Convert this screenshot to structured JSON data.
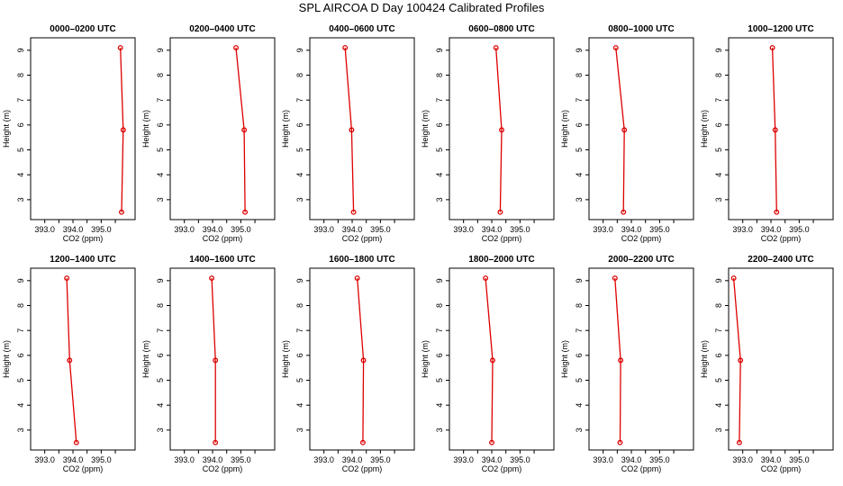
{
  "title": "SPL AIRCOA D  Day 100424  Calibrated Profiles",
  "colors": {
    "series": "#dd0000",
    "axis": "#000000"
  },
  "chart_data": [
    {
      "type": "line",
      "title": "0000–0200 UTC",
      "xlabel": "CO2 (ppm)",
      "ylabel": "Height (m)",
      "xlim": [
        392.5,
        396.2
      ],
      "ylim": [
        2.2,
        9.5
      ],
      "xticks": [
        "393.0",
        "394.0",
        "395.0"
      ],
      "yticks": [
        "3",
        "4",
        "5",
        "6",
        "7",
        "8",
        "9"
      ],
      "x": [
        395.72,
        395.78,
        395.68
      ],
      "y": [
        2.5,
        5.8,
        9.1
      ]
    },
    {
      "type": "line",
      "title": "0200–0400 UTC",
      "xlabel": "CO2 (ppm)",
      "ylabel": "Height (m)",
      "xlim": [
        392.5,
        396.2
      ],
      "ylim": [
        2.2,
        9.5
      ],
      "xticks": [
        "393.0",
        "394.0",
        "395.0"
      ],
      "yticks": [
        "3",
        "4",
        "5",
        "6",
        "7",
        "8",
        "9"
      ],
      "x": [
        395.15,
        395.12,
        394.83
      ],
      "y": [
        2.5,
        5.8,
        9.1
      ]
    },
    {
      "type": "line",
      "title": "0400–0600 UTC",
      "xlabel": "CO2 (ppm)",
      "ylabel": "Height (m)",
      "xlim": [
        392.5,
        396.2
      ],
      "ylim": [
        2.2,
        9.5
      ],
      "xticks": [
        "393.0",
        "394.0",
        "395.0"
      ],
      "yticks": [
        "3",
        "4",
        "5",
        "6",
        "7",
        "8",
        "9"
      ],
      "x": [
        394.05,
        393.98,
        393.75
      ],
      "y": [
        2.5,
        5.8,
        9.1
      ]
    },
    {
      "type": "line",
      "title": "0600–0800 UTC",
      "xlabel": "CO2 (ppm)",
      "ylabel": "Height (m)",
      "xlim": [
        392.5,
        396.2
      ],
      "ylim": [
        2.2,
        9.5
      ],
      "xticks": [
        "393.0",
        "394.0",
        "395.0"
      ],
      "yticks": [
        "3",
        "4",
        "5",
        "6",
        "7",
        "8",
        "9"
      ],
      "x": [
        394.3,
        394.35,
        394.15
      ],
      "y": [
        2.5,
        5.8,
        9.1
      ]
    },
    {
      "type": "line",
      "title": "0800–1000 UTC",
      "xlabel": "CO2 (ppm)",
      "ylabel": "Height (m)",
      "xlim": [
        392.5,
        396.2
      ],
      "ylim": [
        2.2,
        9.5
      ],
      "xticks": [
        "393.0",
        "394.0",
        "395.0"
      ],
      "yticks": [
        "3",
        "4",
        "5",
        "6",
        "7",
        "8",
        "9"
      ],
      "x": [
        393.72,
        393.75,
        393.45
      ],
      "y": [
        2.5,
        5.8,
        9.1
      ]
    },
    {
      "type": "line",
      "title": "1000–1200 UTC",
      "xlabel": "CO2 (ppm)",
      "ylabel": "Height (m)",
      "xlim": [
        392.5,
        396.2
      ],
      "ylim": [
        2.2,
        9.5
      ],
      "xticks": [
        "393.0",
        "394.0",
        "395.0"
      ],
      "yticks": [
        "3",
        "4",
        "5",
        "6",
        "7",
        "8",
        "9"
      ],
      "x": [
        394.2,
        394.15,
        394.05
      ],
      "y": [
        2.5,
        5.8,
        9.1
      ]
    },
    {
      "type": "line",
      "title": "1200–1400 UTC",
      "xlabel": "CO2 (ppm)",
      "ylabel": "Height (m)",
      "xlim": [
        392.5,
        396.2
      ],
      "ylim": [
        2.2,
        9.5
      ],
      "xticks": [
        "393.0",
        "394.0",
        "395.0"
      ],
      "yticks": [
        "3",
        "4",
        "5",
        "6",
        "7",
        "8",
        "9"
      ],
      "x": [
        394.12,
        393.88,
        393.78
      ],
      "y": [
        2.5,
        5.8,
        9.1
      ]
    },
    {
      "type": "line",
      "title": "1400–1600 UTC",
      "xlabel": "CO2 (ppm)",
      "ylabel": "Height (m)",
      "xlim": [
        392.5,
        396.2
      ],
      "ylim": [
        2.2,
        9.5
      ],
      "xticks": [
        "393.0",
        "394.0",
        "395.0"
      ],
      "yticks": [
        "3",
        "4",
        "5",
        "6",
        "7",
        "8",
        "9"
      ],
      "x": [
        394.1,
        394.1,
        393.97
      ],
      "y": [
        2.5,
        5.8,
        9.1
      ]
    },
    {
      "type": "line",
      "title": "1600–1800 UTC",
      "xlabel": "CO2 (ppm)",
      "ylabel": "Height (m)",
      "xlim": [
        392.5,
        396.2
      ],
      "ylim": [
        2.2,
        9.5
      ],
      "xticks": [
        "393.0",
        "394.0",
        "395.0"
      ],
      "yticks": [
        "3",
        "4",
        "5",
        "6",
        "7",
        "8",
        "9"
      ],
      "x": [
        394.38,
        394.4,
        394.18
      ],
      "y": [
        2.5,
        5.8,
        9.1
      ]
    },
    {
      "type": "line",
      "title": "1800–2000 UTC",
      "xlabel": "CO2 (ppm)",
      "ylabel": "Height (m)",
      "xlim": [
        392.5,
        396.2
      ],
      "ylim": [
        2.2,
        9.5
      ],
      "xticks": [
        "393.0",
        "394.0",
        "395.0"
      ],
      "yticks": [
        "3",
        "4",
        "5",
        "6",
        "7",
        "8",
        "9"
      ],
      "x": [
        394.0,
        394.03,
        393.78
      ],
      "y": [
        2.5,
        5.8,
        9.1
      ]
    },
    {
      "type": "line",
      "title": "2000–2200 UTC",
      "xlabel": "CO2 (ppm)",
      "ylabel": "Height (m)",
      "xlim": [
        392.5,
        396.2
      ],
      "ylim": [
        2.2,
        9.5
      ],
      "xticks": [
        "393.0",
        "394.0",
        "395.0"
      ],
      "yticks": [
        "3",
        "4",
        "5",
        "6",
        "7",
        "8",
        "9"
      ],
      "x": [
        393.6,
        393.62,
        393.42
      ],
      "y": [
        2.5,
        5.8,
        9.1
      ]
    },
    {
      "type": "line",
      "title": "2200–2400 UTC",
      "xlabel": "CO2 (ppm)",
      "ylabel": "Height (m)",
      "xlim": [
        392.5,
        396.2
      ],
      "ylim": [
        2.2,
        9.5
      ],
      "xticks": [
        "393.0",
        "394.0",
        "395.0"
      ],
      "yticks": [
        "3",
        "4",
        "5",
        "6",
        "7",
        "8",
        "9"
      ],
      "x": [
        392.88,
        392.92,
        392.68
      ],
      "y": [
        2.5,
        5.8,
        9.1
      ]
    }
  ]
}
